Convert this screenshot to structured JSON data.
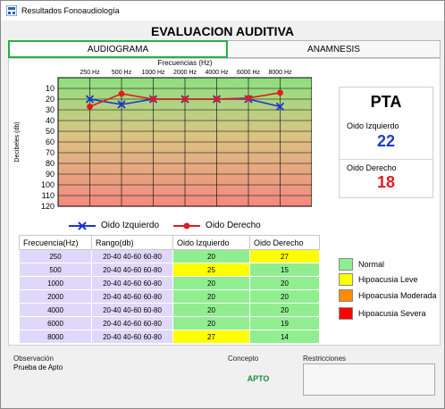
{
  "window": {
    "title": "Resultados Fonoaudiología"
  },
  "header": {
    "title": "EVALUACION AUDITIVA"
  },
  "tabs": [
    {
      "label": "AUDIOGRAMA"
    },
    {
      "label": "ANAMNESIS"
    }
  ],
  "chart_data": {
    "type": "line",
    "title": "",
    "xlabel": "Frecuencias (Hz)",
    "ylabel": "Decibeles (db)",
    "categories": [
      "250 Hz",
      "500 Hz",
      "1000 Hz",
      "2000 Hz",
      "4000 Hz",
      "6000 Hz",
      "8000 Hz"
    ],
    "y_ticks": [
      10,
      20,
      30,
      40,
      50,
      60,
      70,
      80,
      90,
      100,
      110,
      120
    ],
    "ylim": [
      0,
      120
    ],
    "y_inverted": true,
    "grid": true,
    "legend_placement": "bottom",
    "series": [
      {
        "name": "Oido Izquierdo",
        "color": "#1a33d6",
        "marker": "x",
        "values": [
          20,
          25,
          20,
          20,
          20,
          20,
          27
        ]
      },
      {
        "name": "Oido Derecho",
        "color": "#e21b1b",
        "marker": "dot",
        "values": [
          27,
          15,
          20,
          20,
          20,
          19,
          14
        ]
      }
    ]
  },
  "pta": {
    "title": "PTA",
    "left_label": "Oido Izquierdo",
    "left_value": "22",
    "left_color": "#1f3ccf",
    "right_label": "Oido Derecho",
    "right_value": "18",
    "right_color": "#e01b1b"
  },
  "table": {
    "headers": [
      "Frecuencia(Hz)",
      "Rango(db)",
      "Oido Izquierdo",
      "Oido Derecho"
    ],
    "rows": [
      {
        "freq": "250",
        "range": "20-40 40-60 60-80",
        "left": "20",
        "right": "27",
        "left_color": "#90ee90",
        "right_color": "#ffff00"
      },
      {
        "freq": "500",
        "range": "20-40 40-60 60-80",
        "left": "25",
        "right": "15",
        "left_color": "#ffff00",
        "right_color": "#90ee90"
      },
      {
        "freq": "1000",
        "range": "20-40 40-60 60-80",
        "left": "20",
        "right": "20",
        "left_color": "#90ee90",
        "right_color": "#90ee90"
      },
      {
        "freq": "2000",
        "range": "20-40 40-60 60-80",
        "left": "20",
        "right": "20",
        "left_color": "#90ee90",
        "right_color": "#90ee90"
      },
      {
        "freq": "4000",
        "range": "20-40 40-60 60-80",
        "left": "20",
        "right": "20",
        "left_color": "#90ee90",
        "right_color": "#90ee90"
      },
      {
        "freq": "6000",
        "range": "20-40 40-60 60-80",
        "left": "20",
        "right": "19",
        "left_color": "#90ee90",
        "right_color": "#90ee90"
      },
      {
        "freq": "8000",
        "range": "20-40 40-60 60-80",
        "left": "27",
        "right": "14",
        "left_color": "#ffff00",
        "right_color": "#90ee90"
      }
    ]
  },
  "legend": [
    {
      "label": "Normal",
      "color": "#90ee90"
    },
    {
      "label": "Hipoacusia Leve",
      "color": "#ffff00"
    },
    {
      "label": "Hipoacusia Moderada",
      "color": "#ff8c00"
    },
    {
      "label": "Hipoacusia Severa",
      "color": "#ff0000"
    }
  ],
  "observacion": {
    "label": "Observación",
    "text": "Prueba de Apto"
  },
  "concepto": {
    "label": "Concepto",
    "value": "APTO"
  },
  "restricciones": {
    "label": "Restricciones"
  },
  "colors": {
    "accent_tab": "#21b14b",
    "row_bg": "#e0d8fa"
  }
}
